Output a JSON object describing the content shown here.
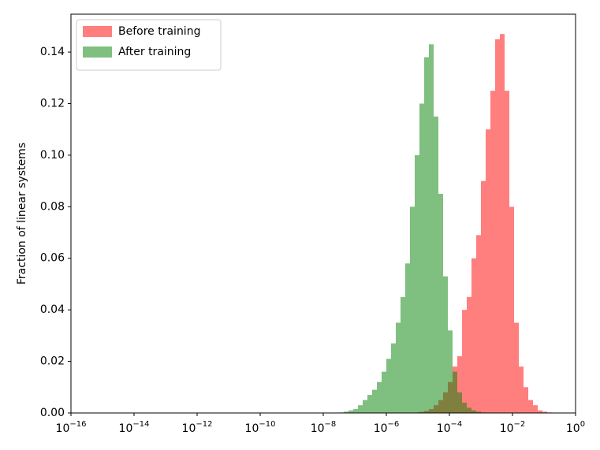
{
  "chart_data": {
    "type": "histogram",
    "y_label": "Fraction of linear systems",
    "xscale": "log",
    "bins": [
      3.162e-08,
      4.467e-08,
      6.31e-08,
      8.913e-08,
      1.259e-07,
      1.778e-07,
      2.512e-07,
      3.548e-07,
      5.012e-07,
      7.079e-07,
      1e-06,
      1.413e-06,
      1.995e-06,
      2.818e-06,
      3.981e-06,
      5.623e-06,
      7.943e-06,
      1.122e-05,
      1.585e-05,
      2.239e-05,
      3.162e-05,
      4.467e-05,
      6.31e-05,
      8.913e-05,
      0.0001259,
      0.0001778,
      0.0002512,
      0.0003548,
      0.0005012,
      0.0007079,
      0.001,
      0.001413,
      0.001995,
      0.002818,
      0.003981,
      0.005623,
      0.007943,
      0.01122,
      0.01585,
      0.02239,
      0.03162,
      0.04467,
      0.0631,
      0.08913,
      0.1259,
      0.1778
    ],
    "series": [
      {
        "name": "Before training",
        "color": "rgba(255,0,0,0.5)",
        "values": [
          0,
          0,
          0,
          0,
          0,
          0,
          0,
          0,
          0,
          0,
          0,
          0,
          0,
          0,
          0,
          0,
          0.0002,
          0.0004,
          0.0008,
          0.0015,
          0.003,
          0.005,
          0.008,
          0.012,
          0.018,
          0.022,
          0.04,
          0.045,
          0.06,
          0.069,
          0.09,
          0.11,
          0.125,
          0.145,
          0.147,
          0.125,
          0.08,
          0.035,
          0.018,
          0.01,
          0.005,
          0.003,
          0.001,
          0.0005,
          0.0002
        ]
      },
      {
        "name": "After training",
        "color": "rgba(0,128,0,0.5)",
        "values": [
          0.0002,
          0.0005,
          0.001,
          0.0015,
          0.003,
          0.005,
          0.007,
          0.009,
          0.012,
          0.016,
          0.021,
          0.027,
          0.035,
          0.045,
          0.058,
          0.08,
          0.1,
          0.12,
          0.138,
          0.143,
          0.115,
          0.085,
          0.053,
          0.032,
          0.016,
          0.008,
          0.004,
          0.002,
          0.001,
          0.0005,
          0.0002,
          0,
          0,
          0,
          0,
          0,
          0,
          0,
          0,
          0,
          0,
          0,
          0,
          0,
          0
        ]
      }
    ],
    "xlim": [
      1e-16,
      1
    ],
    "xticks": [
      {
        "value": 1e-16,
        "label": "10−16"
      },
      {
        "value": 1e-14,
        "label": "10−14"
      },
      {
        "value": 1e-12,
        "label": "10−12"
      },
      {
        "value": 1e-10,
        "label": "10−10"
      },
      {
        "value": 1e-08,
        "label": "10−8"
      },
      {
        "value": 1e-06,
        "label": "10−6"
      },
      {
        "value": 0.0001,
        "label": "10−4"
      },
      {
        "value": 0.01,
        "label": "10−2"
      },
      {
        "value": 1,
        "label": "100"
      }
    ],
    "ylim": [
      0,
      0.1547
    ],
    "yticks": [
      {
        "value": 0,
        "label": "0.00"
      },
      {
        "value": 0.02,
        "label": "0.02"
      },
      {
        "value": 0.04,
        "label": "0.04"
      },
      {
        "value": 0.06,
        "label": "0.06"
      },
      {
        "value": 0.08,
        "label": "0.08"
      },
      {
        "value": 0.1,
        "label": "0.10"
      },
      {
        "value": 0.12,
        "label": "0.12"
      },
      {
        "value": 0.14,
        "label": "0.14"
      }
    ],
    "legend": "upper left"
  }
}
